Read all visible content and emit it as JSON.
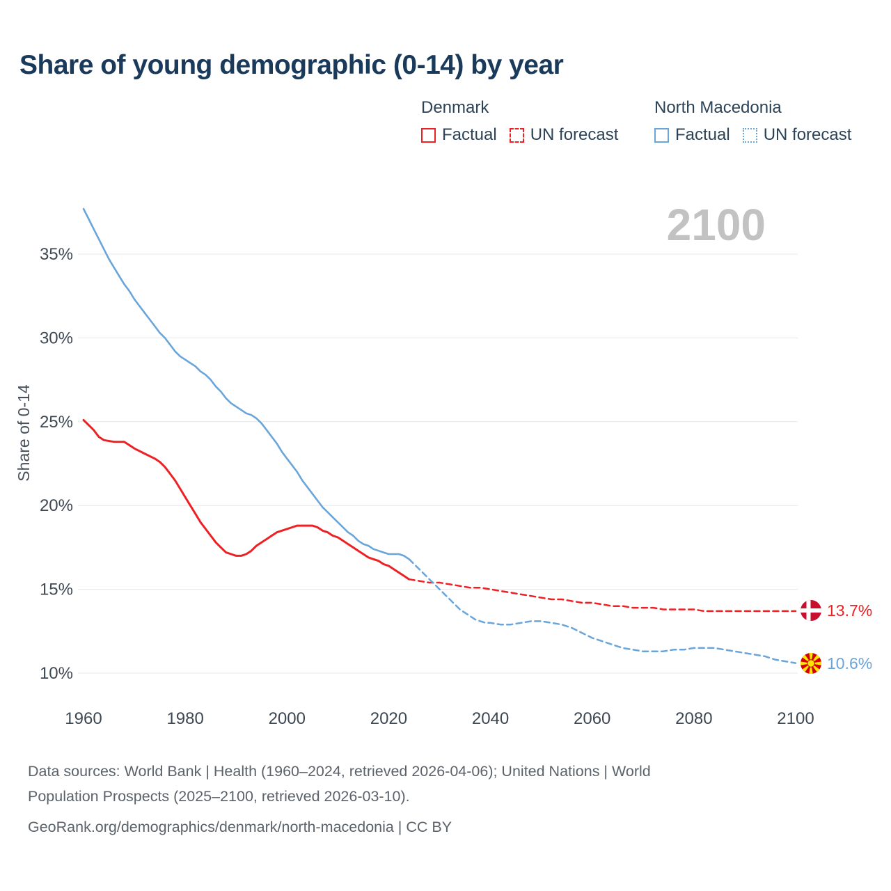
{
  "page": {
    "title": "Share of young demographic (0-14) by year",
    "watermark": "2100"
  },
  "legend": {
    "groups": [
      {
        "name": "Denmark",
        "items": [
          {
            "label": "Factual",
            "style": "solid"
          },
          {
            "label": "UN forecast",
            "style": "dashed"
          }
        ]
      },
      {
        "name": "North Macedonia",
        "items": [
          {
            "label": "Factual",
            "style": "solid"
          },
          {
            "label": "UN forecast",
            "style": "dotted"
          }
        ]
      }
    ]
  },
  "colors": {
    "title": "#1a3a5c",
    "legend_text": "#2c4257",
    "tick": "#3e4852",
    "grid": "#e7e7e7",
    "watermark": "#c2c2c2",
    "footer": "#5b6269",
    "denmark": "#ed2124",
    "north_macedonia": "#6aa5da"
  },
  "chart_data": {
    "type": "line",
    "title": "Share of young demographic (0-14) by year",
    "xlabel": "",
    "ylabel": "Share of 0-14",
    "x_ticks": [
      1960,
      1980,
      2000,
      2020,
      2040,
      2060,
      2080,
      2100
    ],
    "y_ticks": [
      10,
      15,
      20,
      25,
      30,
      35
    ],
    "xlim": [
      1958,
      2114
    ],
    "ylim": [
      9,
      38.5
    ],
    "grid": "horizontal",
    "legend_position": "top-right",
    "watermark": "2100",
    "series": [
      {
        "id": "denmark-factual",
        "name": "Denmark Factual",
        "color": "#ed2124",
        "dash": false,
        "width": 3,
        "points": [
          [
            1960,
            25.1
          ],
          [
            1961,
            24.8
          ],
          [
            1962,
            24.5
          ],
          [
            1963,
            24.1
          ],
          [
            1964,
            23.9
          ],
          [
            1966,
            23.8
          ],
          [
            1968,
            23.8
          ],
          [
            1969,
            23.6
          ],
          [
            1970,
            23.4
          ],
          [
            1972,
            23.1
          ],
          [
            1974,
            22.8
          ],
          [
            1975,
            22.6
          ],
          [
            1976,
            22.3
          ],
          [
            1977,
            21.9
          ],
          [
            1978,
            21.5
          ],
          [
            1979,
            21.0
          ],
          [
            1980,
            20.5
          ],
          [
            1981,
            20.0
          ],
          [
            1982,
            19.5
          ],
          [
            1983,
            19.0
          ],
          [
            1984,
            18.6
          ],
          [
            1985,
            18.2
          ],
          [
            1986,
            17.8
          ],
          [
            1987,
            17.5
          ],
          [
            1988,
            17.2
          ],
          [
            1989,
            17.1
          ],
          [
            1990,
            17.0
          ],
          [
            1991,
            17.0
          ],
          [
            1992,
            17.1
          ],
          [
            1993,
            17.3
          ],
          [
            1994,
            17.6
          ],
          [
            1995,
            17.8
          ],
          [
            1996,
            18.0
          ],
          [
            1997,
            18.2
          ],
          [
            1998,
            18.4
          ],
          [
            1999,
            18.5
          ],
          [
            2000,
            18.6
          ],
          [
            2001,
            18.7
          ],
          [
            2002,
            18.8
          ],
          [
            2004,
            18.8
          ],
          [
            2005,
            18.8
          ],
          [
            2006,
            18.7
          ],
          [
            2007,
            18.5
          ],
          [
            2008,
            18.4
          ],
          [
            2009,
            18.2
          ],
          [
            2010,
            18.1
          ],
          [
            2011,
            17.9
          ],
          [
            2012,
            17.7
          ],
          [
            2013,
            17.5
          ],
          [
            2014,
            17.3
          ],
          [
            2015,
            17.1
          ],
          [
            2016,
            16.9
          ],
          [
            2017,
            16.8
          ],
          [
            2018,
            16.7
          ],
          [
            2019,
            16.5
          ],
          [
            2020,
            16.4
          ],
          [
            2021,
            16.2
          ],
          [
            2022,
            16.0
          ],
          [
            2023,
            15.8
          ],
          [
            2024,
            15.6
          ]
        ]
      },
      {
        "id": "denmark-forecast",
        "name": "Denmark UN forecast",
        "color": "#ed2124",
        "dash": true,
        "width": 2.5,
        "points": [
          [
            2024,
            15.6
          ],
          [
            2026,
            15.5
          ],
          [
            2028,
            15.4
          ],
          [
            2030,
            15.4
          ],
          [
            2032,
            15.3
          ],
          [
            2034,
            15.2
          ],
          [
            2036,
            15.1
          ],
          [
            2038,
            15.1
          ],
          [
            2040,
            15.0
          ],
          [
            2042,
            14.9
          ],
          [
            2044,
            14.8
          ],
          [
            2046,
            14.7
          ],
          [
            2048,
            14.6
          ],
          [
            2050,
            14.5
          ],
          [
            2052,
            14.4
          ],
          [
            2054,
            14.4
          ],
          [
            2056,
            14.3
          ],
          [
            2058,
            14.2
          ],
          [
            2060,
            14.2
          ],
          [
            2062,
            14.1
          ],
          [
            2064,
            14.0
          ],
          [
            2066,
            14.0
          ],
          [
            2068,
            13.9
          ],
          [
            2070,
            13.9
          ],
          [
            2072,
            13.9
          ],
          [
            2074,
            13.8
          ],
          [
            2076,
            13.8
          ],
          [
            2078,
            13.8
          ],
          [
            2080,
            13.8
          ],
          [
            2082,
            13.7
          ],
          [
            2084,
            13.7
          ],
          [
            2086,
            13.7
          ],
          [
            2090,
            13.7
          ],
          [
            2094,
            13.7
          ],
          [
            2100,
            13.7
          ]
        ]
      },
      {
        "id": "north-macedonia-factual",
        "name": "North Macedonia Factual",
        "color": "#6aa5da",
        "dash": false,
        "width": 2.6,
        "points": [
          [
            1960,
            37.7
          ],
          [
            1961,
            37.1
          ],
          [
            1962,
            36.5
          ],
          [
            1963,
            35.9
          ],
          [
            1964,
            35.3
          ],
          [
            1965,
            34.7
          ],
          [
            1966,
            34.2
          ],
          [
            1967,
            33.7
          ],
          [
            1968,
            33.2
          ],
          [
            1969,
            32.8
          ],
          [
            1970,
            32.3
          ],
          [
            1971,
            31.9
          ],
          [
            1972,
            31.5
          ],
          [
            1973,
            31.1
          ],
          [
            1974,
            30.7
          ],
          [
            1975,
            30.3
          ],
          [
            1976,
            30.0
          ],
          [
            1977,
            29.6
          ],
          [
            1978,
            29.2
          ],
          [
            1979,
            28.9
          ],
          [
            1980,
            28.7
          ],
          [
            1981,
            28.5
          ],
          [
            1982,
            28.3
          ],
          [
            1983,
            28.0
          ],
          [
            1984,
            27.8
          ],
          [
            1985,
            27.5
          ],
          [
            1986,
            27.1
          ],
          [
            1987,
            26.8
          ],
          [
            1988,
            26.4
          ],
          [
            1989,
            26.1
          ],
          [
            1990,
            25.9
          ],
          [
            1991,
            25.7
          ],
          [
            1992,
            25.5
          ],
          [
            1993,
            25.4
          ],
          [
            1994,
            25.2
          ],
          [
            1995,
            24.9
          ],
          [
            1996,
            24.5
          ],
          [
            1997,
            24.1
          ],
          [
            1998,
            23.7
          ],
          [
            1999,
            23.2
          ],
          [
            2000,
            22.8
          ],
          [
            2001,
            22.4
          ],
          [
            2002,
            22.0
          ],
          [
            2003,
            21.5
          ],
          [
            2004,
            21.1
          ],
          [
            2005,
            20.7
          ],
          [
            2006,
            20.3
          ],
          [
            2007,
            19.9
          ],
          [
            2008,
            19.6
          ],
          [
            2009,
            19.3
          ],
          [
            2010,
            19.0
          ],
          [
            2011,
            18.7
          ],
          [
            2012,
            18.4
          ],
          [
            2013,
            18.2
          ],
          [
            2014,
            17.9
          ],
          [
            2015,
            17.7
          ],
          [
            2016,
            17.6
          ],
          [
            2017,
            17.4
          ],
          [
            2018,
            17.3
          ],
          [
            2019,
            17.2
          ],
          [
            2020,
            17.1
          ],
          [
            2021,
            17.1
          ],
          [
            2022,
            17.1
          ],
          [
            2023,
            17.0
          ],
          [
            2024,
            16.8
          ]
        ]
      },
      {
        "id": "north-macedonia-forecast",
        "name": "North Macedonia UN forecast",
        "color": "#6aa5da",
        "dash": true,
        "width": 2.5,
        "points": [
          [
            2024,
            16.8
          ],
          [
            2025,
            16.5
          ],
          [
            2026,
            16.2
          ],
          [
            2027,
            15.9
          ],
          [
            2028,
            15.6
          ],
          [
            2029,
            15.3
          ],
          [
            2030,
            15.0
          ],
          [
            2031,
            14.7
          ],
          [
            2032,
            14.4
          ],
          [
            2033,
            14.1
          ],
          [
            2034,
            13.8
          ],
          [
            2035,
            13.6
          ],
          [
            2036,
            13.4
          ],
          [
            2037,
            13.2
          ],
          [
            2038,
            13.1
          ],
          [
            2039,
            13.0
          ],
          [
            2040,
            13.0
          ],
          [
            2042,
            12.9
          ],
          [
            2044,
            12.9
          ],
          [
            2046,
            13.0
          ],
          [
            2048,
            13.1
          ],
          [
            2050,
            13.1
          ],
          [
            2052,
            13.0
          ],
          [
            2054,
            12.9
          ],
          [
            2056,
            12.7
          ],
          [
            2058,
            12.4
          ],
          [
            2060,
            12.1
          ],
          [
            2062,
            11.9
          ],
          [
            2064,
            11.7
          ],
          [
            2066,
            11.5
          ],
          [
            2068,
            11.4
          ],
          [
            2070,
            11.3
          ],
          [
            2072,
            11.3
          ],
          [
            2074,
            11.3
          ],
          [
            2076,
            11.4
          ],
          [
            2078,
            11.4
          ],
          [
            2080,
            11.5
          ],
          [
            2082,
            11.5
          ],
          [
            2084,
            11.5
          ],
          [
            2086,
            11.4
          ],
          [
            2088,
            11.3
          ],
          [
            2090,
            11.2
          ],
          [
            2092,
            11.1
          ],
          [
            2094,
            11.0
          ],
          [
            2096,
            10.8
          ],
          [
            2098,
            10.7
          ],
          [
            2100,
            10.6
          ]
        ]
      }
    ],
    "end_labels": [
      {
        "label": "13.7%",
        "series": "Denmark",
        "value": 13.7,
        "flag": "denmark-flag-icon"
      },
      {
        "label": "10.6%",
        "series": "North Macedonia",
        "value": 10.6,
        "flag": "north-macedonia-flag-icon"
      }
    ]
  },
  "footer": {
    "lines": [
      "Data sources: World Bank | Health (1960–2024, retrieved 2026-04-06); United Nations | World",
      "Population Prospects (2025–2100, retrieved 2026-03-10).",
      "GeoRank.org/demographics/denmark/north-macedonia | CC BY"
    ]
  }
}
